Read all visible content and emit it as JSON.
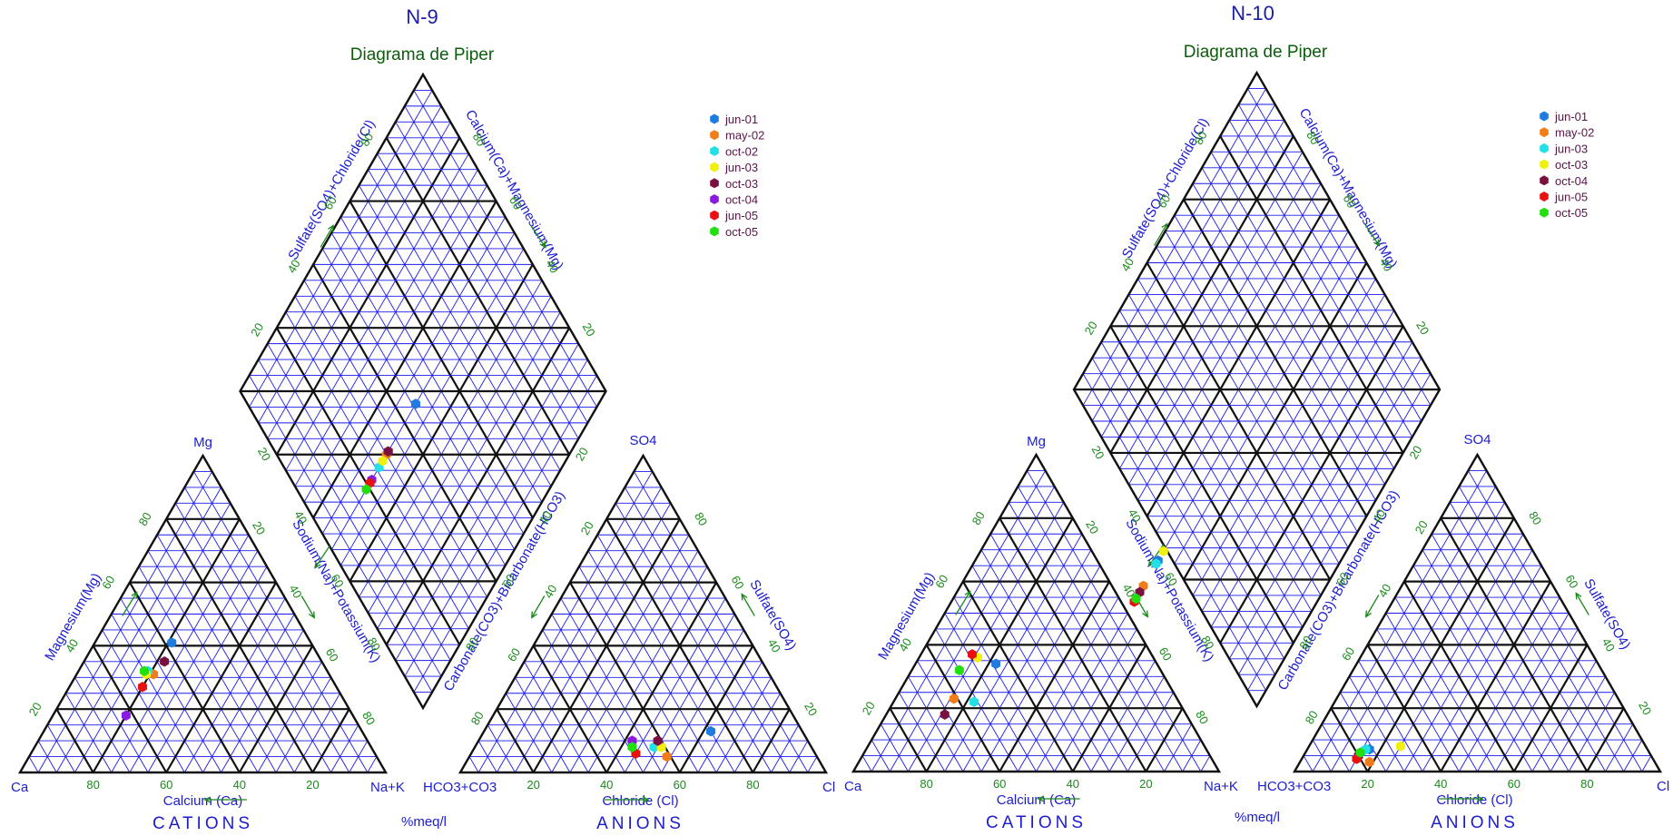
{
  "chart_data": [
    {
      "type": "scatter",
      "diagram": "piper",
      "title": "N-9",
      "subtitle": "Diagrama de Piper",
      "units_label": "%meq/l",
      "cations": {
        "section_label": "CATIONS",
        "vertex_labels": {
          "bottom_left": "Ca",
          "bottom_right": "Na+K",
          "top": "Mg"
        },
        "axis_labels": {
          "bottom": "Calcium (Ca)",
          "left": "Magnesium(Mg)",
          "right": "Sodium(Na)+Potassium(K)"
        }
      },
      "anions": {
        "section_label": "ANIONS",
        "vertex_labels": {
          "bottom_left": "HCO3+CO3",
          "bottom_right": "Cl",
          "top": "SO4"
        },
        "axis_labels": {
          "bottom": "Chloride (Cl)",
          "left": "Carbonate(CO3)+Bicarbonate(HCO3)",
          "right": "Sulfate(SO4)"
        }
      },
      "diamond": {
        "axis_labels": {
          "upper_left": "Sulfate(SO4)+Chloride(Cl)",
          "upper_right": "Calcium(Ca)+Magnesium(Mg)"
        }
      },
      "tick_labels": [
        "20",
        "40",
        "60",
        "80"
      ],
      "legend_position": "top-right",
      "series": [
        {
          "name": "jun-01",
          "color": "#1e7be0",
          "ca": 38,
          "mg": 41,
          "nak": 21,
          "hco3": 25,
          "so4": 13,
          "cl": 62
        },
        {
          "name": "may-02",
          "color": "#f07d1a",
          "ca": 48,
          "mg": 31,
          "nak": 21,
          "hco3": 41,
          "so4": 5,
          "cl": 54
        },
        {
          "name": "oct-02",
          "color": "#22e0e8",
          "ca": 49,
          "mg": 32,
          "nak": 19,
          "hco3": 43,
          "so4": 8,
          "cl": 49
        },
        {
          "name": "jun-03",
          "color": "#f0f010",
          "ca": 50,
          "mg": 31,
          "nak": 19,
          "hco3": 41,
          "so4": 8,
          "cl": 51
        },
        {
          "name": "oct-03",
          "color": "#7a1040",
          "ca": 43,
          "mg": 35,
          "nak": 22,
          "hco3": 41,
          "so4": 10,
          "cl": 49
        },
        {
          "name": "oct-04",
          "color": "#8a1ae0",
          "ca": 62,
          "mg": 18,
          "nak": 20,
          "hco3": 48,
          "so4": 10,
          "cl": 42
        },
        {
          "name": "jun-05",
          "color": "#e81010",
          "ca": 53,
          "mg": 27,
          "nak": 20,
          "hco3": 49,
          "so4": 6,
          "cl": 45
        },
        {
          "name": "oct-05",
          "color": "#22e010",
          "ca": 50,
          "mg": 32,
          "nak": 18,
          "hco3": 49,
          "so4": 8,
          "cl": 43
        }
      ]
    },
    {
      "type": "scatter",
      "diagram": "piper",
      "title": "N-10",
      "subtitle": "Diagrama de Piper",
      "units_label": "%meq/l",
      "cations": {
        "section_label": "CATIONS",
        "vertex_labels": {
          "bottom_left": "Ca",
          "bottom_right": "Na+K",
          "top": "Mg"
        },
        "axis_labels": {
          "bottom": "Calcium (Ca)",
          "left": "Magnesium(Mg)",
          "right": "Sodium(Na)+Potassium(K)"
        }
      },
      "anions": {
        "section_label": "ANIONS",
        "vertex_labels": {
          "bottom_left": "HCO3+CO3",
          "bottom_right": "Cl",
          "top": "SO4"
        },
        "axis_labels": {
          "bottom": "Chloride (Cl)",
          "left": "Carbonate(CO3)+Bicarbonate(HCO3)",
          "right": "Sulfate(SO4)"
        }
      },
      "diamond": {
        "axis_labels": {
          "upper_left": "Sulfate(SO4)+Chloride(Cl)",
          "upper_right": "Calcium(Ca)+Magnesium(Mg)"
        }
      },
      "tick_labels": [
        "20",
        "40",
        "60",
        "80"
      ],
      "legend_position": "top-right",
      "series": [
        {
          "name": "jun-01",
          "color": "#1e7be0",
          "ca": 44,
          "mg": 34,
          "nak": 22,
          "hco3": 76,
          "so4": 7,
          "cl": 17
        },
        {
          "name": "may-02",
          "color": "#f07d1a",
          "ca": 61,
          "mg": 23,
          "nak": 16,
          "hco3": 78,
          "so4": 3,
          "cl": 19
        },
        {
          "name": "jun-03",
          "color": "#22e0e8",
          "ca": 56,
          "mg": 22,
          "nak": 22,
          "hco3": 77,
          "so4": 7,
          "cl": 16
        },
        {
          "name": "oct-03",
          "color": "#f0f010",
          "ca": 48,
          "mg": 36,
          "nak": 16,
          "hco3": 67,
          "so4": 8,
          "cl": 25
        },
        {
          "name": "oct-04",
          "color": "#7a1040",
          "ca": 66,
          "mg": 18,
          "nak": 16,
          "hco3": 80,
          "so4": 5,
          "cl": 15
        },
        {
          "name": "jun-05",
          "color": "#e81010",
          "ca": 49,
          "mg": 37,
          "nak": 14,
          "hco3": 81,
          "so4": 4,
          "cl": 15
        },
        {
          "name": "oct-05",
          "color": "#22e010",
          "ca": 55,
          "mg": 32,
          "nak": 13,
          "hco3": 79,
          "so4": 6,
          "cl": 15
        }
      ]
    }
  ]
}
